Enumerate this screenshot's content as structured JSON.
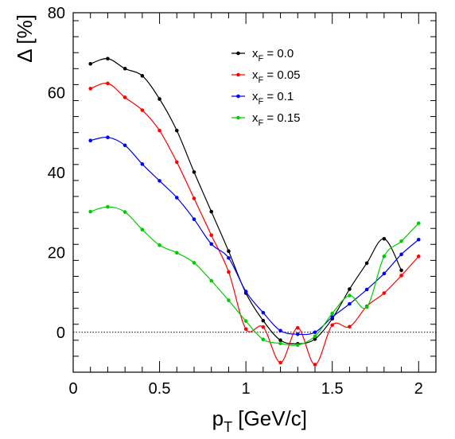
{
  "chart_data": {
    "type": "line",
    "xlabel": {
      "main": "p",
      "sub": "T",
      "rest": " [GeV/c]"
    },
    "ylabel": "Δ [%]",
    "xlim": [
      0,
      2.1
    ],
    "ylim": [
      -10,
      80
    ],
    "x_ticks": [
      0,
      0.5,
      1,
      1.5,
      2
    ],
    "x_tick_labels": [
      "0",
      "0.5",
      "1",
      "1.5",
      "2"
    ],
    "y_ticks": [
      0,
      20,
      40,
      60,
      80
    ],
    "y_tick_labels": [
      "0",
      "20",
      "40",
      "60",
      "80"
    ],
    "reference_line": {
      "y": 0,
      "style": "dotted"
    },
    "legend_position": "top-right",
    "x": [
      0.1,
      0.2,
      0.3,
      0.4,
      0.5,
      0.6,
      0.7,
      0.8,
      0.9,
      1.0,
      1.1,
      1.2,
      1.3,
      1.4,
      1.5,
      1.6,
      1.7,
      1.8,
      1.9,
      2.0
    ],
    "series": [
      {
        "name_main": "x",
        "name_sub": "F",
        "name_rest": " = 0.0",
        "color": "#000000",
        "values": [
          67.2,
          68.5,
          66.0,
          64.2,
          58.4,
          50.5,
          40.1,
          30.2,
          20.3,
          9.8,
          2.9,
          -2.0,
          -2.9,
          -1.7,
          3.4,
          10.8,
          17.3,
          23.4,
          15.5,
          null
        ]
      },
      {
        "name_main": "x",
        "name_sub": "F",
        "name_rest": " = 0.05",
        "color": "#ff0000",
        "values": [
          61.0,
          62.3,
          58.8,
          55.6,
          50.5,
          42.6,
          33.5,
          24.3,
          15.1,
          0.8,
          1.3,
          -7.6,
          1.1,
          -8.1,
          1.8,
          1.4,
          6.5,
          9.8,
          14.2,
          19.0
        ]
      },
      {
        "name_main": "x",
        "name_sub": "F",
        "name_rest": " = 0.1",
        "color": "#0000ff",
        "values": [
          48.0,
          48.8,
          46.8,
          42.1,
          37.9,
          33.7,
          28.3,
          22.1,
          18.6,
          10.2,
          4.9,
          0.4,
          -0.5,
          0.0,
          3.8,
          7.1,
          10.7,
          14.7,
          19.5,
          23.2
        ]
      },
      {
        "name_main": "x",
        "name_sub": "F",
        "name_rest": " = 0.15",
        "color": "#00cc00",
        "values": [
          30.2,
          31.4,
          30.1,
          25.7,
          21.8,
          19.9,
          17.4,
          12.9,
          8.0,
          2.8,
          -1.8,
          -2.8,
          -3.2,
          -1.0,
          4.7,
          9.2,
          6.3,
          19.0,
          22.8,
          27.3
        ]
      }
    ]
  }
}
